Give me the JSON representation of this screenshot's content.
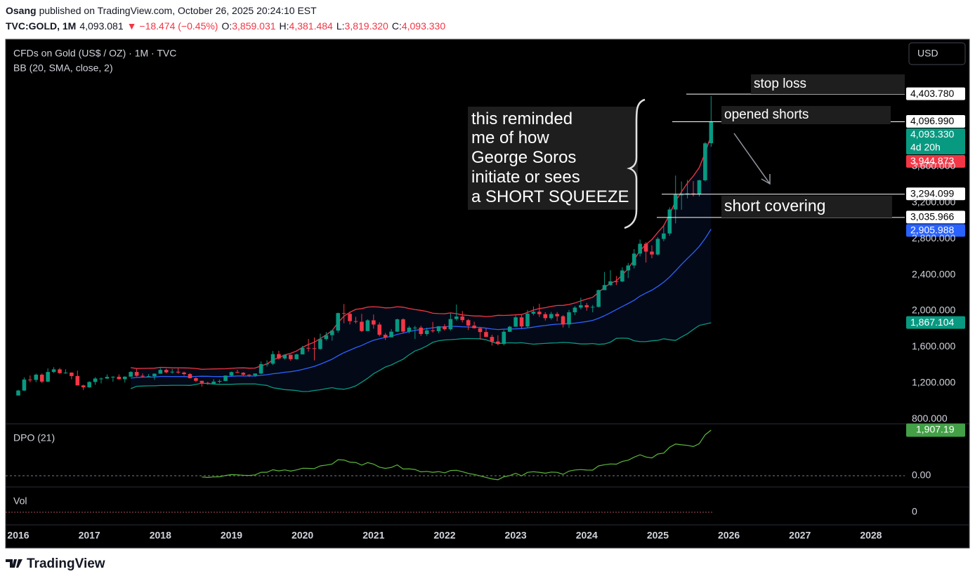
{
  "header": {
    "publisher": "Osang",
    "published": "published on TradingView.com, October 26, 2025 20:24:10 EST",
    "symbol": "TVC:GOLD, 1M",
    "last": "4,093.081",
    "change": "▼ −18.474 (−0.45%)",
    "ohlc": [
      {
        "key": "O:",
        "value": "3,859.031"
      },
      {
        "key": "H:",
        "value": "4,381.484"
      },
      {
        "key": "L:",
        "value": "3,819.320"
      },
      {
        "key": "C:",
        "value": "4,093.330"
      }
    ]
  },
  "chart_data": {
    "type": "candlestick",
    "title": "CFDs on Gold (US$ / OZ) · 1M · TVC",
    "currency": "USD",
    "up_color": "#089981",
    "down_color": "#f23645",
    "ylim": [
      747,
      4996
    ],
    "yticks": [
      {
        "value": 800,
        "label": "800.000"
      },
      {
        "value": 1200,
        "label": "1,200.000"
      },
      {
        "value": 1600,
        "label": "1,600.000"
      },
      {
        "value": 2000,
        "label": "2,000.000"
      },
      {
        "value": 2400,
        "label": "2,400.000"
      },
      {
        "value": 2800,
        "label": "2,800.000"
      },
      {
        "value": 3200,
        "label": "3,200.000"
      },
      {
        "value": 3600,
        "label": "3,600.000"
      }
    ],
    "xticks": [
      2016,
      2017,
      2018,
      2019,
      2020,
      2021,
      2022,
      2023,
      2024,
      2025,
      2026,
      2027,
      2028
    ],
    "ohlc": [
      [
        1061,
        1124,
        1062,
        1116
      ],
      [
        1116,
        1263,
        1111,
        1238
      ],
      [
        1238,
        1283,
        1208,
        1234
      ],
      [
        1234,
        1304,
        1209,
        1292
      ],
      [
        1292,
        1305,
        1199,
        1215
      ],
      [
        1215,
        1362,
        1208,
        1322
      ],
      [
        1322,
        1375,
        1310,
        1351
      ],
      [
        1351,
        1367,
        1302,
        1309
      ],
      [
        1309,
        1352,
        1302,
        1315
      ],
      [
        1315,
        1318,
        1241,
        1277
      ],
      [
        1277,
        1337,
        1171,
        1173
      ],
      [
        1173,
        1180,
        1122,
        1152
      ],
      [
        1152,
        1219,
        1147,
        1211
      ],
      [
        1211,
        1264,
        1180,
        1249
      ],
      [
        1249,
        1261,
        1195,
        1249
      ],
      [
        1249,
        1295,
        1244,
        1268
      ],
      [
        1268,
        1275,
        1214,
        1269
      ],
      [
        1269,
        1296,
        1236,
        1242
      ],
      [
        1242,
        1274,
        1205,
        1270
      ],
      [
        1270,
        1331,
        1267,
        1322
      ],
      [
        1322,
        1357,
        1271,
        1280
      ],
      [
        1280,
        1306,
        1261,
        1271
      ],
      [
        1271,
        1299,
        1265,
        1275
      ],
      [
        1275,
        1306,
        1236,
        1303
      ],
      [
        1303,
        1366,
        1302,
        1345
      ],
      [
        1345,
        1361,
        1307,
        1318
      ],
      [
        1318,
        1355,
        1303,
        1325
      ],
      [
        1325,
        1365,
        1302,
        1316
      ],
      [
        1316,
        1326,
        1281,
        1299
      ],
      [
        1299,
        1309,
        1251,
        1253
      ],
      [
        1253,
        1265,
        1211,
        1224
      ],
      [
        1224,
        1224,
        1160,
        1201
      ],
      [
        1201,
        1214,
        1180,
        1192
      ],
      [
        1192,
        1243,
        1182,
        1215
      ],
      [
        1215,
        1237,
        1196,
        1222
      ],
      [
        1222,
        1284,
        1221,
        1282
      ],
      [
        1282,
        1326,
        1276,
        1321
      ],
      [
        1321,
        1346,
        1311,
        1313
      ],
      [
        1313,
        1320,
        1281,
        1292
      ],
      [
        1292,
        1296,
        1266,
        1284
      ],
      [
        1284,
        1306,
        1269,
        1305
      ],
      [
        1305,
        1439,
        1297,
        1409
      ],
      [
        1409,
        1452,
        1382,
        1414
      ],
      [
        1414,
        1555,
        1400,
        1520
      ],
      [
        1520,
        1557,
        1459,
        1472
      ],
      [
        1472,
        1518,
        1458,
        1513
      ],
      [
        1513,
        1515,
        1446,
        1464
      ],
      [
        1464,
        1524,
        1459,
        1517
      ],
      [
        1517,
        1611,
        1517,
        1589
      ],
      [
        1589,
        1689,
        1547,
        1585
      ],
      [
        1585,
        1704,
        1451,
        1577
      ],
      [
        1577,
        1747,
        1568,
        1687
      ],
      [
        1687,
        1765,
        1670,
        1730
      ],
      [
        1730,
        1789,
        1670,
        1781
      ],
      [
        1781,
        1981,
        1757,
        1975
      ],
      [
        1975,
        2075,
        1863,
        1967
      ],
      [
        1967,
        1992,
        1849,
        1886
      ],
      [
        1886,
        1933,
        1860,
        1879
      ],
      [
        1879,
        1966,
        1765,
        1776
      ],
      [
        1776,
        1906,
        1775,
        1895
      ],
      [
        1895,
        1959,
        1802,
        1848
      ],
      [
        1848,
        1872,
        1717,
        1734
      ],
      [
        1734,
        1755,
        1677,
        1707
      ],
      [
        1707,
        1798,
        1707,
        1769
      ],
      [
        1769,
        1913,
        1766,
        1906
      ],
      [
        1906,
        1917,
        1751,
        1770
      ],
      [
        1770,
        1832,
        1750,
        1814
      ],
      [
        1814,
        1834,
        1688,
        1814
      ],
      [
        1814,
        1834,
        1721,
        1743
      ],
      [
        1743,
        1814,
        1723,
        1783
      ],
      [
        1783,
        1877,
        1759,
        1774
      ],
      [
        1774,
        1831,
        1753,
        1829
      ],
      [
        1829,
        1853,
        1780,
        1796
      ],
      [
        1796,
        1974,
        1781,
        1909
      ],
      [
        1909,
        2070,
        1890,
        1937
      ],
      [
        1937,
        1998,
        1872,
        1897
      ],
      [
        1897,
        1910,
        1787,
        1837
      ],
      [
        1837,
        1879,
        1805,
        1807
      ],
      [
        1807,
        1814,
        1681,
        1765
      ],
      [
        1765,
        1808,
        1709,
        1711
      ],
      [
        1711,
        1735,
        1615,
        1660
      ],
      [
        1660,
        1729,
        1618,
        1633
      ],
      [
        1633,
        1786,
        1617,
        1768
      ],
      [
        1768,
        1833,
        1765,
        1824
      ],
      [
        1824,
        1949,
        1823,
        1928
      ],
      [
        1928,
        1959,
        1804,
        1827
      ],
      [
        1827,
        2009,
        1810,
        1969
      ],
      [
        1969,
        2049,
        1950,
        1990
      ],
      [
        1990,
        2079,
        1932,
        1963
      ],
      [
        1963,
        1985,
        1893,
        1919
      ],
      [
        1919,
        1988,
        1903,
        1965
      ],
      [
        1965,
        1987,
        1885,
        1940
      ],
      [
        1940,
        1953,
        1816,
        1849
      ],
      [
        1849,
        2009,
        1810,
        1984
      ],
      [
        1984,
        2052,
        1953,
        2036
      ],
      [
        2036,
        2146,
        2016,
        2063
      ],
      [
        2063,
        2088,
        2002,
        2039
      ],
      [
        2039,
        2065,
        1984,
        2044
      ],
      [
        2044,
        2236,
        2039,
        2230
      ],
      [
        2230,
        2431,
        2229,
        2286
      ],
      [
        2286,
        2450,
        2277,
        2327
      ],
      [
        2327,
        2387,
        2287,
        2326
      ],
      [
        2326,
        2483,
        2318,
        2448
      ],
      [
        2448,
        2531,
        2364,
        2503
      ],
      [
        2503,
        2685,
        2471,
        2635
      ],
      [
        2635,
        2790,
        2604,
        2744
      ],
      [
        2744,
        2761,
        2536,
        2657
      ],
      [
        2657,
        2726,
        2583,
        2625
      ],
      [
        2625,
        2817,
        2614,
        2798
      ],
      [
        2798,
        2956,
        2772,
        2858
      ],
      [
        2858,
        3148,
        2833,
        3124
      ],
      [
        3124,
        3500,
        2970,
        3289
      ],
      [
        3289,
        3435,
        3121,
        3289
      ],
      [
        3289,
        3452,
        3247,
        3303
      ],
      [
        3303,
        3439,
        3268,
        3290
      ],
      [
        3290,
        3453,
        3268,
        3448
      ],
      [
        3448,
        3872,
        3436,
        3858
      ],
      [
        3859.031,
        4381.484,
        3819.32,
        4093.33
      ]
    ],
    "bb": {
      "label": "BB (20, SMA, close, 2)",
      "period": 20,
      "mult": 2,
      "upper_color": "#f23645",
      "basis_color": "#2962ff",
      "lower_color": "#089981"
    },
    "price_lines": [
      {
        "value": 4403.78
      },
      {
        "value": 4096.99
      },
      {
        "value": 3294.099
      },
      {
        "value": 3035.966
      }
    ],
    "price_labels": [
      {
        "value": 4403.78,
        "label": "4,403.780",
        "color": "#ffffff",
        "text_color": "#000000"
      },
      {
        "value": 4096.99,
        "label": "4,096.990",
        "color": "#ffffff",
        "text_color": "#000000"
      },
      {
        "value": 4093.33,
        "label": "4,093.330",
        "countdown": "4d 20h",
        "color": "#089981",
        "text_color": "#ffffff"
      },
      {
        "value": 3944.873,
        "label": "3,944.873",
        "color": "#f23645",
        "text_color": "#ffffff"
      },
      {
        "value": 3294.099,
        "label": "3,294.099",
        "color": "#ffffff",
        "text_color": "#000000"
      },
      {
        "value": 3035.966,
        "label": "3,035.966",
        "color": "#ffffff",
        "text_color": "#000000"
      },
      {
        "value": 2905.988,
        "label": "2,905.988",
        "color": "#2962ff",
        "text_color": "#ffffff"
      },
      {
        "value": 1867.104,
        "label": "1,867.104",
        "color": "#089981",
        "text_color": "#ffffff"
      }
    ],
    "annotations": {
      "stop_loss": "stop loss",
      "opened_shorts": "opened shorts",
      "short_covering": "short covering",
      "note": [
        "this reminded",
        "me of how",
        "George Soros",
        "initiate or sees",
        "a SHORT SQUEEZE"
      ]
    },
    "dpo": {
      "label": "DPO (21)",
      "period": 21,
      "color": "#5cb83a",
      "ylim": [
        -470,
        2170
      ],
      "yticks": [
        {
          "value": 0,
          "label": "0.00"
        }
      ],
      "last": {
        "value": 1907.19,
        "label": "1,907.19"
      }
    },
    "vol": {
      "label": "Vol",
      "ylim": [
        -1,
        2
      ],
      "yticks": [
        0
      ]
    }
  },
  "footer": {
    "logo": "TradingView"
  }
}
